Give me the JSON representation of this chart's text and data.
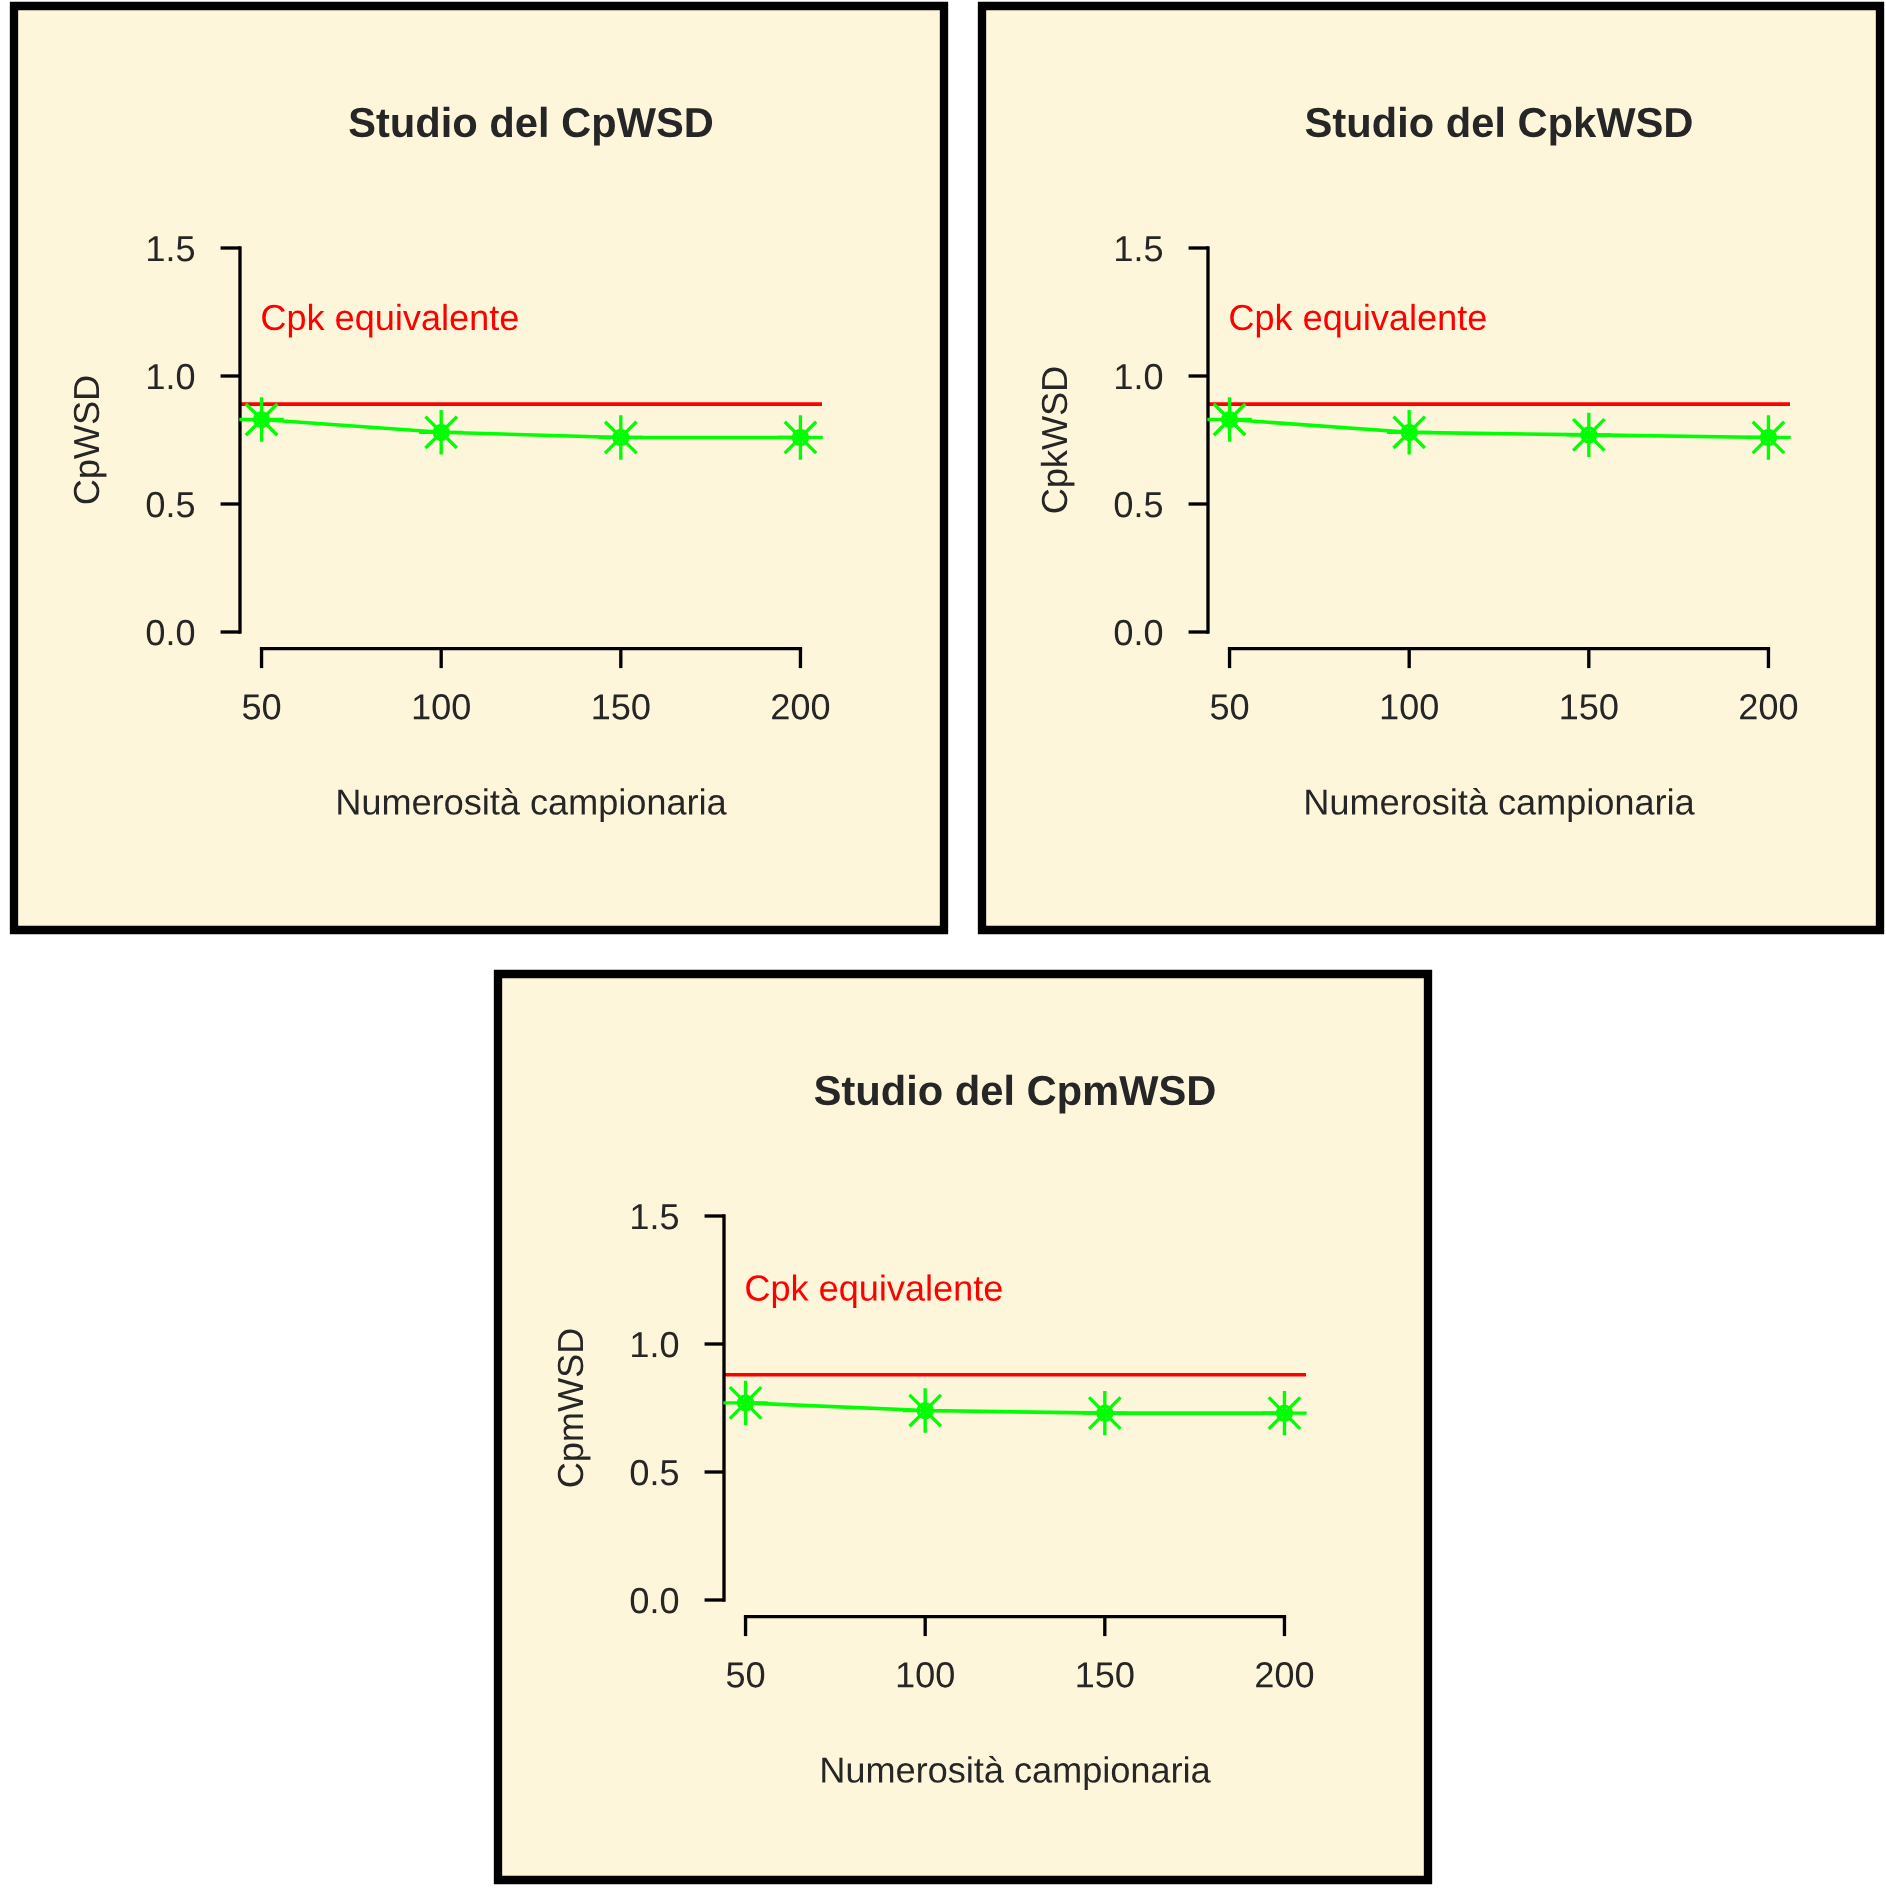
{
  "chart_data": [
    {
      "type": "line",
      "title": "Studio del CpWSD",
      "xlabel": "Numerosità campionaria",
      "ylabel": "CpWSD",
      "x": [
        50,
        100,
        150,
        200
      ],
      "series": [
        {
          "color": "#00ff00",
          "values": [
            0.83,
            0.78,
            0.76,
            0.76
          ]
        }
      ],
      "xlim": [
        44,
        206
      ],
      "ylim": [
        0,
        1.5
      ],
      "xticks": [
        50,
        100,
        150,
        200
      ],
      "yticks": [
        {
          "value": 0,
          "label": "0.0"
        },
        {
          "value": 0.5,
          "label": "0.5"
        },
        {
          "value": 1,
          "label": "1.0"
        },
        {
          "value": 1.5,
          "label": "1.5"
        }
      ],
      "ref_lines": [
        {
          "axis": "y",
          "value": 0.89,
          "label": "Cpk equivalente",
          "color": "#ff0000"
        }
      ],
      "marker": "star"
    },
    {
      "type": "line",
      "title": "Studio del CpkWSD",
      "xlabel": "Numerosità campionaria",
      "ylabel": "CpkWSD",
      "x": [
        50,
        100,
        150,
        200
      ],
      "series": [
        {
          "color": "#00ff00",
          "values": [
            0.83,
            0.78,
            0.77,
            0.76
          ]
        }
      ],
      "xlim": [
        44,
        206
      ],
      "ylim": [
        0,
        1.5
      ],
      "xticks": [
        50,
        100,
        150,
        200
      ],
      "yticks": [
        {
          "value": 0,
          "label": "0.0"
        },
        {
          "value": 0.5,
          "label": "0.5"
        },
        {
          "value": 1,
          "label": "1.0"
        },
        {
          "value": 1.5,
          "label": "1.5"
        }
      ],
      "ref_lines": [
        {
          "axis": "y",
          "value": 0.89,
          "label": "Cpk equivalente",
          "color": "#ff0000"
        }
      ],
      "marker": "star"
    },
    {
      "type": "line",
      "title": "Studio del CpmWSD",
      "xlabel": "Numerosità campionaria",
      "ylabel": "CpmWSD",
      "x": [
        50,
        100,
        150,
        200
      ],
      "series": [
        {
          "color": "#00ff00",
          "values": [
            0.77,
            0.74,
            0.73,
            0.73
          ]
        }
      ],
      "xlim": [
        44,
        206
      ],
      "ylim": [
        0,
        1.5
      ],
      "xticks": [
        50,
        100,
        150,
        200
      ],
      "yticks": [
        {
          "value": 0,
          "label": "0.0"
        },
        {
          "value": 0.5,
          "label": "0.5"
        },
        {
          "value": 1,
          "label": "1.0"
        },
        {
          "value": 1.5,
          "label": "1.5"
        }
      ],
      "ref_lines": [
        {
          "axis": "y",
          "value": 0.88,
          "label": "Cpk equivalente",
          "color": "#ff0000"
        }
      ],
      "marker": "star"
    }
  ]
}
